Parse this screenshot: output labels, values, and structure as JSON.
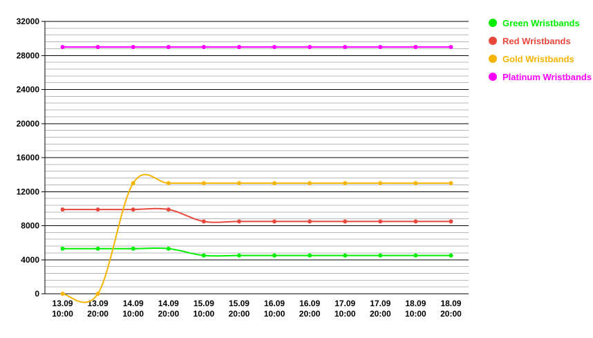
{
  "chart_data": {
    "type": "line",
    "title": "",
    "xlabel": "",
    "ylabel": "",
    "ylim": [
      0,
      32000
    ],
    "y_ticks": [
      0,
      4000,
      8000,
      12000,
      16000,
      20000,
      24000,
      28000,
      32000
    ],
    "y_tick_labels": [
      "0",
      "4000",
      "8000",
      "12000",
      "16000",
      "20000",
      "24000",
      "28000",
      "32000"
    ],
    "minor_grid_step": 800,
    "grid": true,
    "legend_position": "right",
    "categories": [
      [
        "13.09",
        "10:00"
      ],
      [
        "13.09",
        "20:00"
      ],
      [
        "14.09",
        "10:00"
      ],
      [
        "14.09",
        "20:00"
      ],
      [
        "15.09",
        "10:00"
      ],
      [
        "15.09",
        "20:00"
      ],
      [
        "16.09",
        "10:00"
      ],
      [
        "16.09",
        "20:00"
      ],
      [
        "17.09",
        "10:00"
      ],
      [
        "17.09",
        "20:00"
      ],
      [
        "18.09",
        "10:00"
      ],
      [
        "18.09",
        "20:00"
      ]
    ],
    "series": [
      {
        "name": "Green Wristbands",
        "color": "#00ee00",
        "values": [
          5300,
          5300,
          5300,
          5300,
          4500,
          4500,
          4500,
          4500,
          4500,
          4500,
          4500,
          4500
        ]
      },
      {
        "name": "Red Wristbands",
        "color": "#e8483c",
        "values": [
          9900,
          9900,
          9900,
          9900,
          8500,
          8500,
          8500,
          8500,
          8500,
          8500,
          8500,
          8500
        ]
      },
      {
        "name": "Gold Wristbands",
        "color": "#f5b400",
        "values": [
          0,
          0,
          13000,
          13000,
          13000,
          13000,
          13000,
          13000,
          13000,
          13000,
          13000,
          13000
        ]
      },
      {
        "name": "Platinum Wristbands",
        "color": "#ff00ff",
        "values": [
          29000,
          29000,
          29000,
          29000,
          29000,
          29000,
          29000,
          29000,
          29000,
          29000,
          29000,
          29000
        ]
      }
    ]
  }
}
